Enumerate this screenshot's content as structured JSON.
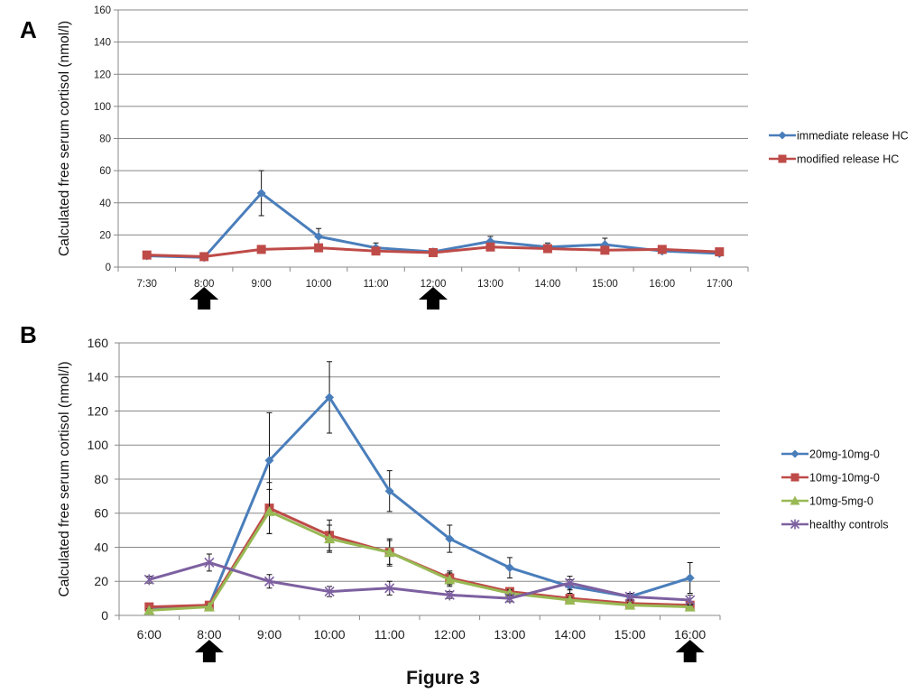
{
  "figure": {
    "caption": "Figure 3"
  },
  "chart_data": [
    {
      "type": "line",
      "panel": "A",
      "ylabel": "Calculated free serum cortisol (nmol/l)",
      "xlabel": "",
      "categories": [
        "7:30",
        "8:00",
        "9:00",
        "10:00",
        "11:00",
        "12:00",
        "13:00",
        "14:00",
        "15:00",
        "16:00",
        "17:00"
      ],
      "ylim": [
        0,
        160
      ],
      "yticks": [
        0,
        20,
        40,
        60,
        80,
        100,
        120,
        140,
        160
      ],
      "grid": true,
      "legend_position": "right",
      "dose_arrows_at": [
        "8:00",
        "12:00"
      ],
      "series": [
        {
          "name": "immediate release HC",
          "color": "#4a7ebb",
          "marker": "diamond",
          "values": [
            7,
            6,
            46,
            19,
            12,
            9.5,
            16,
            12.5,
            14,
            10,
            8.5
          ],
          "errors": [
            1,
            1,
            14,
            5,
            3,
            1.5,
            3,
            2.5,
            4,
            1.5,
            1.5
          ]
        },
        {
          "name": "modified release HC",
          "color": "#be4b48",
          "marker": "square",
          "values": [
            7.5,
            6.5,
            11,
            12,
            10,
            9,
            12.5,
            11.5,
            10.5,
            11,
            9.5
          ],
          "errors": [
            1,
            1,
            2,
            2,
            2,
            1.5,
            2,
            2,
            1.5,
            1.5,
            1.5
          ]
        }
      ]
    },
    {
      "type": "line",
      "panel": "B",
      "ylabel": "Calculated free serum  cortisol (nmol/l)",
      "xlabel": "",
      "categories": [
        "6:00",
        "8:00",
        "9:00",
        "10:00",
        "11:00",
        "12:00",
        "13:00",
        "14:00",
        "15:00",
        "16:00"
      ],
      "ylim": [
        0,
        160
      ],
      "yticks": [
        0,
        20,
        40,
        60,
        80,
        100,
        120,
        140,
        160
      ],
      "grid": true,
      "legend_position": "right",
      "dose_arrows_at": [
        "8:00",
        "16:00"
      ],
      "series": [
        {
          "name": "20mg-10mg-0",
          "color": "#4a7ebb",
          "marker": "diamond",
          "values": [
            4,
            6,
            91,
            128,
            73,
            45,
            28,
            17,
            11,
            22
          ],
          "errors": [
            1,
            1,
            28,
            21,
            12,
            8,
            6,
            4,
            2,
            9
          ]
        },
        {
          "name": "10mg-10mg-0",
          "color": "#be4b48",
          "marker": "square",
          "values": [
            5,
            6,
            63,
            47,
            37,
            22,
            14,
            10,
            7,
            6
          ],
          "errors": [
            1,
            1,
            15,
            9,
            8,
            4,
            2,
            1.5,
            1.5,
            1.5
          ]
        },
        {
          "name": "10mg-5mg-0",
          "color": "#98b954",
          "marker": "triangle",
          "values": [
            3,
            5,
            61,
            45,
            37,
            21,
            13,
            9,
            6,
            5
          ],
          "errors": [
            1,
            1,
            13,
            8,
            7,
            4,
            2,
            1.5,
            1.5,
            1.5
          ]
        },
        {
          "name": "healthy controls",
          "color": "#7d60a0",
          "marker": "x",
          "values": [
            21,
            31,
            20,
            14,
            16,
            12,
            10,
            19,
            11,
            9
          ],
          "errors": [
            2,
            5,
            4,
            3,
            4,
            2,
            2,
            4,
            2,
            3
          ]
        }
      ]
    }
  ]
}
